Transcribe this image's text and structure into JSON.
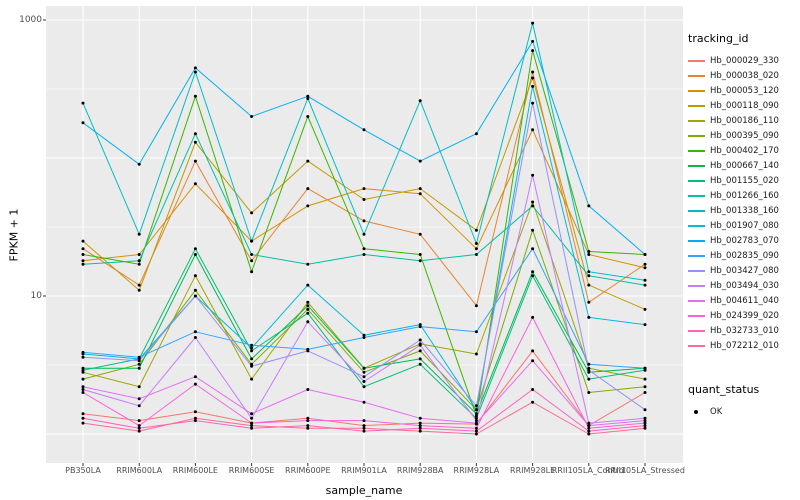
{
  "figure": {
    "background": "#FFFFFF",
    "panel_background": "#EBEBEB",
    "grid_color": "#FFFFFF",
    "tick_color": "#333333",
    "tick_label_color": "#4D4D4D",
    "point_color": "#000000"
  },
  "chart_data": {
    "type": "line",
    "title": "",
    "xlabel": "sample_name",
    "ylabel": "FPKM + 1",
    "y_scale": "log10",
    "ylim": [
      0.6,
      1200
    ],
    "grid": true,
    "legend_position": "right",
    "y_ticks": [
      {
        "value": 1000,
        "label": "1000"
      },
      {
        "value": 10,
        "label": "10"
      }
    ],
    "y_major_gridlines": [
      1,
      10,
      100,
      1000
    ],
    "y_minor_gridlines": [
      3.162,
      31.62,
      316.2
    ],
    "categories": [
      "PB350LA",
      "RRIM600LA",
      "RRIM600LE",
      "RRIM600SE",
      "RRIM600PE",
      "RRIM901LA",
      "RRIM928BA",
      "RRIM928LA",
      "RRIM928LE",
      "RRII105LA_Control",
      "RRII105LA_Stressed"
    ],
    "series": [
      {
        "name": "Hb_000029_330",
        "color": "#F8766D",
        "values": [
          1.4,
          1.25,
          1.45,
          1.2,
          1.3,
          1.15,
          1.2,
          1.18,
          4.0,
          1.15,
          2.0
        ]
      },
      {
        "name": "Hb_000038_020",
        "color": "#EA8331",
        "values": [
          22,
          12,
          95,
          18,
          60,
          35,
          28,
          8.5,
          420,
          9,
          17
        ]
      },
      {
        "name": "Hb_000053_120",
        "color": "#D89000",
        "values": [
          18,
          20,
          65,
          25,
          45,
          60,
          55,
          22,
          160,
          20,
          16
        ]
      },
      {
        "name": "Hb_000118_090",
        "color": "#C09B00",
        "values": [
          25,
          11,
          130,
          40,
          95,
          50,
          60,
          30,
          380,
          12,
          8
        ]
      },
      {
        "name": "Hb_000186_110",
        "color": "#A3A500",
        "values": [
          2.8,
          2.2,
          14,
          2.5,
          9,
          3.0,
          4.5,
          3.8,
          48,
          3.0,
          2.5
        ]
      },
      {
        "name": "Hb_000395_090",
        "color": "#7CAE00",
        "values": [
          2.5,
          3.2,
          11,
          3.2,
          8,
          2.8,
          4.0,
          1.5,
          30,
          2.0,
          2.2
        ]
      },
      {
        "name": "Hb_000402_170",
        "color": "#39B600",
        "values": [
          20,
          17,
          280,
          15,
          200,
          22,
          20,
          1.35,
          600,
          21,
          20
        ]
      },
      {
        "name": "Hb_000667_140",
        "color": "#00BB4E",
        "values": [
          3.0,
          3.0,
          20,
          3.5,
          8.5,
          3.0,
          3.5,
          1.4,
          15,
          2.8,
          3.0
        ]
      },
      {
        "name": "Hb_001155_020",
        "color": "#00BF7D",
        "values": [
          2.9,
          3.5,
          22,
          4.0,
          7.5,
          2.2,
          3.2,
          1.3,
          14,
          2.5,
          2.9
        ]
      },
      {
        "name": "Hb_001266_160",
        "color": "#00C1A3",
        "values": [
          17,
          18,
          150,
          20,
          17,
          20,
          18,
          20,
          45,
          14,
          12
        ]
      },
      {
        "name": "Hb_001338_160",
        "color": "#00BFC4",
        "values": [
          250,
          28,
          420,
          25,
          270,
          28,
          260,
          24,
          950,
          15,
          13
        ]
      },
      {
        "name": "Hb_001907_080",
        "color": "#00BAE0",
        "values": [
          3.8,
          3.5,
          10,
          4.2,
          12,
          5.2,
          6.2,
          1.5,
          330,
          7,
          6.2
        ]
      },
      {
        "name": "Hb_002783_070",
        "color": "#00B0F6",
        "values": [
          180,
          90,
          450,
          200,
          280,
          160,
          95,
          150,
          700,
          45,
          20
        ]
      },
      {
        "name": "Hb_002835_090",
        "color": "#35A2FF",
        "values": [
          3.9,
          3.6,
          5.5,
          4.4,
          4.1,
          5.0,
          6.0,
          5.5,
          22,
          3.2,
          3.0
        ]
      },
      {
        "name": "Hb_003427_080",
        "color": "#9590FF",
        "values": [
          3.6,
          3.4,
          10,
          3.1,
          4.0,
          2.6,
          4.8,
          1.6,
          250,
          2.9,
          1.5
        ]
      },
      {
        "name": "Hb_003494_030",
        "color": "#C77CFF",
        "values": [
          2.1,
          1.6,
          5.0,
          1.3,
          6.5,
          2.4,
          4.4,
          1.25,
          75,
          1.2,
          1.3
        ]
      },
      {
        "name": "Hb_004611_040",
        "color": "#E76BF3",
        "values": [
          2.2,
          1.8,
          2.6,
          1.4,
          2.1,
          1.7,
          1.3,
          1.2,
          3.4,
          1.15,
          1.25
        ]
      },
      {
        "name": "Hb_024399_020",
        "color": "#FA62DB",
        "values": [
          2.0,
          1.15,
          2.3,
          1.2,
          1.25,
          1.25,
          1.15,
          1.1,
          7.0,
          1.1,
          1.2
        ]
      },
      {
        "name": "Hb_032733_010",
        "color": "#FF62BC",
        "values": [
          1.3,
          1.1,
          1.25,
          1.1,
          1.15,
          1.05,
          1.1,
          1.05,
          2.1,
          1.05,
          1.15
        ]
      },
      {
        "name": "Hb_072212_010",
        "color": "#FF6A98",
        "values": [
          1.2,
          1.05,
          1.3,
          1.15,
          1.1,
          1.1,
          1.05,
          1.0,
          1.7,
          1.0,
          1.1
        ]
      }
    ]
  },
  "legend": {
    "tracking_title": "tracking_id",
    "quant_title": "quant_status",
    "quant_entries": [
      {
        "label": "OK",
        "symbol": "point",
        "color": "#000000"
      }
    ]
  }
}
